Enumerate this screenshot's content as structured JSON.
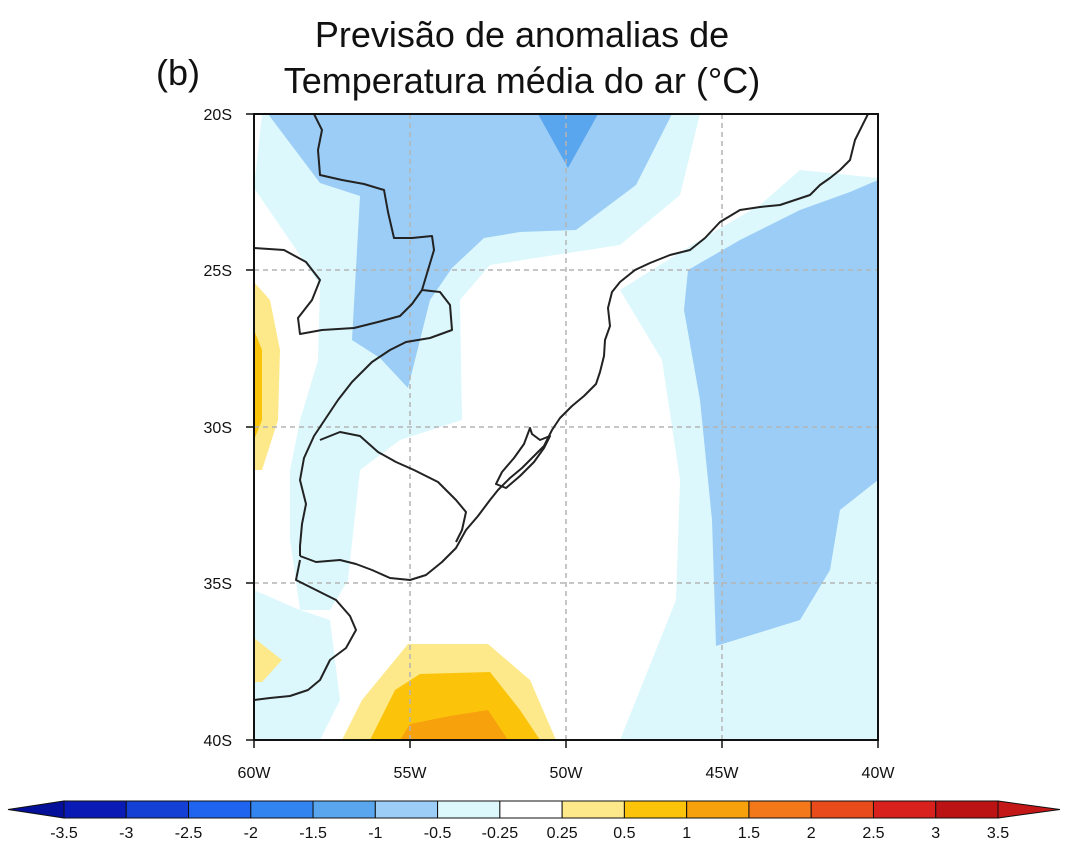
{
  "panel_label": "(b)",
  "title": {
    "line1": "Previsão de anomalias de",
    "line2": "Temperatura média do ar (°C)"
  },
  "axes": {
    "lat_labels": [
      "20S",
      "25S",
      "30S",
      "35S",
      "40S"
    ],
    "lon_labels": [
      "60W",
      "55W",
      "50W",
      "45W",
      "40W"
    ],
    "lat_range": [
      -40,
      -20
    ],
    "lon_range": [
      -60,
      -40
    ],
    "grid": true
  },
  "colorbar": {
    "labels": [
      "-3.5",
      "-3",
      "-2.5",
      "-2",
      "-1.5",
      "-1",
      "-0.5",
      "-0.25",
      "0.25",
      "0.5",
      "1",
      "1.5",
      "2",
      "2.5",
      "3",
      "3.5"
    ],
    "colors": [
      "#0a1ab4",
      "#1440d6",
      "#1e64ee",
      "#3284f0",
      "#5aa6ee",
      "#9ccdf6",
      "#dcf8fc",
      "#ffffff",
      "#fde98a",
      "#fbc40a",
      "#f7a10c",
      "#f2781a",
      "#ea4b1a",
      "#d8201c",
      "#bb1214"
    ],
    "under_color": "#05109a",
    "over_color": "#c41818"
  },
  "chart_data": {
    "type": "heatmap",
    "title": "Previsão de anomalias de Temperatura média do ar (°C)",
    "xlabel": "",
    "ylabel": "",
    "xlim": [
      -60,
      -40
    ],
    "ylim": [
      -40,
      -20
    ],
    "levels": [
      -3.5,
      -3,
      -2.5,
      -2,
      -1.5,
      -1,
      -0.5,
      -0.25,
      0.25,
      0.5,
      1,
      1.5,
      2,
      2.5,
      3,
      3.5
    ],
    "regions": [
      {
        "range": "-0.5 to -0.25",
        "color": "#dcf8fc"
      },
      {
        "range": "-1 to -0.5",
        "color": "#9ccdf6"
      },
      {
        "range": "-1.5 to -1",
        "color": "#5aa6ee"
      },
      {
        "range": "-0.25 to 0.25",
        "color": "#ffffff"
      },
      {
        "range": "0.25 to 0.5",
        "color": "#fde98a"
      },
      {
        "range": "0.5 to 1",
        "color": "#fbc40a"
      },
      {
        "range": "1 to 1.5",
        "color": "#f7a10c"
      }
    ]
  }
}
